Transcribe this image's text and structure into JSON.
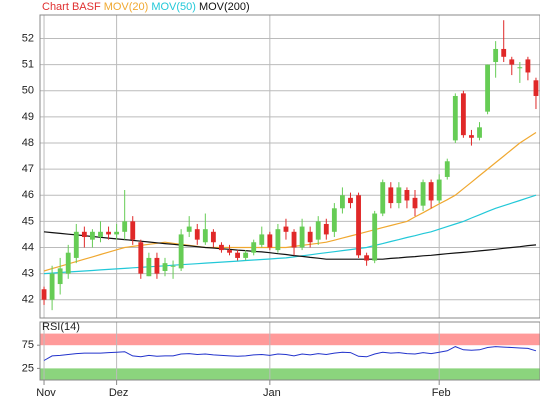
{
  "chart_data": [
    {
      "type": "candlestick",
      "title": "Chart BASF",
      "title_color": "#e03030",
      "up_color": "#66cc55",
      "down_color": "#e02828",
      "open": [
        42.4,
        42.0,
        42.6,
        43.0,
        43.6,
        44.6,
        44.3,
        44.4,
        44.6,
        44.5,
        44.6,
        45.0,
        44.2,
        42.9,
        43.6,
        43.1,
        43.3,
        43.2,
        44.6,
        44.7,
        44.2,
        44.6,
        44.1,
        43.9,
        43.8,
        43.6,
        43.8,
        44.1,
        44.5,
        43.9,
        44.8,
        44.6,
        44.0,
        44.6,
        44.3,
        44.9,
        44.6,
        45.5,
        45.9,
        46.0,
        43.7,
        43.5,
        45.3,
        46.3,
        45.7,
        46.2,
        45.9,
        45.6,
        46.5,
        45.8,
        46.7,
        48.1,
        49.9,
        48.3,
        48.2,
        49.2,
        51.1,
        51.6,
        51.2,
        50.9,
        51.2,
        50.4
      ],
      "high": [
        42.5,
        43.3,
        43.6,
        44.1,
        44.9,
        44.8,
        44.7,
        45.0,
        44.8,
        44.9,
        46.2,
        45.2,
        44.3,
        43.8,
        43.8,
        43.6,
        43.5,
        44.7,
        45.2,
        44.9,
        45.3,
        44.7,
        44.2,
        44.1,
        43.9,
        43.9,
        44.3,
        44.8,
        44.6,
        44.9,
        45.1,
        44.7,
        45.1,
        44.8,
        45.2,
        45.1,
        45.7,
        46.3,
        46.1,
        46.1,
        43.8,
        45.4,
        46.6,
        46.5,
        46.5,
        46.3,
        46.2,
        46.6,
        46.6,
        46.8,
        47.4,
        49.9,
        50.0,
        48.5,
        48.8,
        51.0,
        51.9,
        52.7,
        51.3,
        51.1,
        51.3,
        50.5
      ],
      "low": [
        41.8,
        41.6,
        42.2,
        42.8,
        43.4,
        44.0,
        44.0,
        44.2,
        44.3,
        44.3,
        44.3,
        44.1,
        42.8,
        42.9,
        42.8,
        42.9,
        42.8,
        43.1,
        44.4,
        44.1,
        44.1,
        44.0,
        43.8,
        43.7,
        43.5,
        43.5,
        43.7,
        44.0,
        43.9,
        43.8,
        44.3,
        43.7,
        43.9,
        44.0,
        44.1,
        44.3,
        44.4,
        45.3,
        45.5,
        43.6,
        43.3,
        43.4,
        45.2,
        45.5,
        45.5,
        45.5,
        45.2,
        45.4,
        45.5,
        45.7,
        46.6,
        48.0,
        48.2,
        47.9,
        48.1,
        49.1,
        50.5,
        51.1,
        50.6,
        50.3,
        50.4,
        49.3
      ],
      "close": [
        42.0,
        43.0,
        43.2,
        43.8,
        44.6,
        44.4,
        44.6,
        44.6,
        44.5,
        44.6,
        45.0,
        44.3,
        43.0,
        43.6,
        43.0,
        43.4,
        43.3,
        44.5,
        44.8,
        44.3,
        44.7,
        44.2,
        43.9,
        43.8,
        43.6,
        43.8,
        44.2,
        44.5,
        44.0,
        44.7,
        44.6,
        44.0,
        44.8,
        44.2,
        45.0,
        44.5,
        45.5,
        46.0,
        45.7,
        43.7,
        43.5,
        45.3,
        46.5,
        45.7,
        46.3,
        45.8,
        45.5,
        46.5,
        45.8,
        46.6,
        47.3,
        49.8,
        48.3,
        48.2,
        48.6,
        51.0,
        51.6,
        51.3,
        51.0,
        50.9,
        50.7,
        49.8
      ],
      "overlays": [
        {
          "name": "MOV(20)",
          "color": "#f0a830",
          "values": [
            43.1,
            43.19,
            43.28,
            43.37,
            43.46,
            43.55,
            43.64,
            43.73,
            43.82,
            43.91,
            44.0,
            44.04,
            44.08,
            44.12,
            44.16,
            44.2,
            44.16,
            44.12,
            44.08,
            44.04,
            44.0,
            44.0,
            44.0,
            44.0,
            44.0,
            44.0,
            44.0,
            44.0,
            44.0,
            44.0,
            44.0,
            44.04,
            44.08,
            44.12,
            44.16,
            44.2,
            44.28,
            44.36,
            44.44,
            44.52,
            44.6,
            44.68,
            44.76,
            44.84,
            44.92,
            45.0,
            45.17,
            45.33,
            45.5,
            45.67,
            45.83,
            46.0,
            46.25,
            46.5,
            46.75,
            47.0,
            47.25,
            47.5,
            47.75,
            48.0,
            48.2,
            48.4
          ]
        },
        {
          "name": "MOV(50)",
          "color": "#22c8d8",
          "values": [
            43.0,
            43.02,
            43.04,
            43.06,
            43.08,
            43.1,
            43.12,
            43.14,
            43.16,
            43.18,
            43.2,
            43.22,
            43.24,
            43.26,
            43.28,
            43.3,
            43.32,
            43.34,
            43.36,
            43.38,
            43.4,
            43.42,
            43.44,
            43.46,
            43.48,
            43.5,
            43.52,
            43.54,
            43.56,
            43.58,
            43.6,
            43.64,
            43.68,
            43.72,
            43.76,
            43.8,
            43.84,
            43.88,
            43.92,
            43.96,
            44.0,
            44.08,
            44.15,
            44.23,
            44.3,
            44.38,
            44.45,
            44.53,
            44.6,
            44.7,
            44.8,
            44.9,
            45.0,
            45.13,
            45.25,
            45.38,
            45.5,
            45.6,
            45.7,
            45.8,
            45.9,
            46.0
          ]
        },
        {
          "name": "MOV(200)",
          "color": "#111111",
          "values": [
            44.6,
            44.57,
            44.54,
            44.51,
            44.48,
            44.45,
            44.42,
            44.39,
            44.36,
            44.33,
            44.3,
            44.27,
            44.24,
            44.21,
            44.18,
            44.15,
            44.12,
            44.09,
            44.06,
            44.03,
            44.0,
            43.98,
            43.95,
            43.93,
            43.9,
            43.88,
            43.85,
            43.83,
            43.8,
            43.76,
            43.73,
            43.69,
            43.66,
            43.62,
            43.59,
            43.55,
            43.55,
            43.55,
            43.55,
            43.55,
            43.55,
            43.55,
            43.55,
            43.58,
            43.6,
            43.63,
            43.65,
            43.68,
            43.7,
            43.73,
            43.76,
            43.79,
            43.81,
            43.84,
            43.87,
            43.9,
            43.93,
            43.97,
            44.0,
            44.03,
            44.07,
            44.1
          ]
        }
      ],
      "ylim": [
        41.3,
        52.9
      ],
      "yticks": [
        42,
        43,
        44,
        45,
        46,
        47,
        48,
        49,
        50,
        51,
        52
      ],
      "xlim": [
        -0.5,
        61.5
      ],
      "xticks": [
        {
          "value": 0,
          "label": "Nov"
        },
        {
          "value": 9,
          "label": "Dez"
        },
        {
          "value": 28,
          "label": "Jan"
        },
        {
          "value": 49,
          "label": "Feb"
        }
      ],
      "grid": true
    },
    {
      "type": "line",
      "title": "RSI(14)",
      "color": "#2233cc",
      "values": [
        42,
        52,
        53,
        55,
        57,
        58,
        58,
        58,
        59,
        60,
        61,
        52,
        50,
        53,
        51,
        52,
        52,
        56,
        57,
        55,
        56,
        54,
        53,
        52,
        51,
        52,
        54,
        55,
        53,
        56,
        55,
        52,
        56,
        54,
        57,
        55,
        58,
        60,
        59,
        51,
        50,
        56,
        60,
        58,
        59,
        57,
        56,
        59,
        57,
        60,
        63,
        72,
        65,
        64,
        65,
        70,
        72,
        71,
        70,
        69,
        68,
        63
      ],
      "ylim": [
        0,
        125
      ],
      "yticks": [
        25,
        75
      ],
      "bands": [
        {
          "range": [
            75,
            100
          ],
          "color": "#ff8888"
        },
        {
          "range": [
            0,
            25
          ],
          "color": "#77cc66"
        }
      ]
    }
  ]
}
